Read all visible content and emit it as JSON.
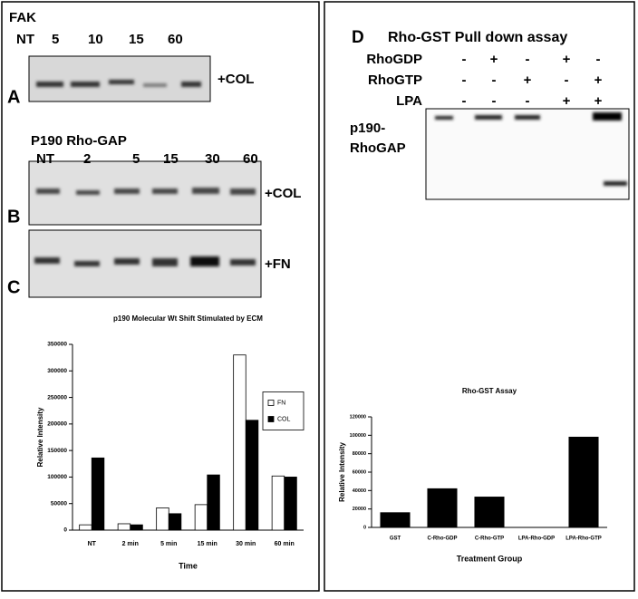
{
  "blots": {
    "fak_title": "FAK",
    "fak_lanes": [
      "NT",
      "5",
      "10",
      "15",
      "60"
    ],
    "fak_condition": "+COL",
    "label_a": "A",
    "p190_title": "P190 Rho-GAP",
    "p190_lanes": [
      "NT",
      "2",
      "5",
      "15",
      "30",
      "60"
    ],
    "col_condition": "+COL",
    "label_b": "B",
    "fn_condition": "+FN",
    "label_c": "C"
  },
  "pulldown": {
    "label": "D",
    "title": "Rho-GST Pull down assay",
    "rows": [
      {
        "name": "RhoGDP",
        "signs": [
          "-",
          "+",
          "-",
          "+",
          "-"
        ]
      },
      {
        "name": "RhoGTP",
        "signs": [
          "-",
          "-",
          "+",
          "-",
          "+"
        ]
      },
      {
        "name": "LPA",
        "signs": [
          "-",
          "-",
          "-",
          "+",
          "+"
        ]
      }
    ],
    "band_label": [
      "p190-",
      "RhoGAP"
    ]
  },
  "chart_data": [
    {
      "type": "bar",
      "title": "p190 Molecular Wt Shift Stimulated by ECM",
      "x_label": "Time",
      "y_label": "Relative Intensity",
      "categories": [
        "NT",
        "2 min",
        "5 min",
        "15 min",
        "30 min",
        "60 min"
      ],
      "series": [
        {
          "name": "FN",
          "color": "#ffffff",
          "values": [
            10000,
            12000,
            42000,
            48000,
            330000,
            102000
          ]
        },
        {
          "name": "COL",
          "color": "#000000",
          "values": [
            136000,
            10000,
            31000,
            104000,
            207000,
            100000
          ]
        }
      ],
      "ylim": [
        0,
        350000
      ],
      "yticks": [
        0,
        50000,
        100000,
        150000,
        200000,
        250000,
        300000,
        350000
      ],
      "legend": "right",
      "grid": false
    },
    {
      "type": "bar",
      "title": "Rho-GST Assay",
      "x_label": "Treatment Group",
      "y_label": "Relative Intensity",
      "categories": [
        "GST",
        "C-Rho-GDP",
        "C-Rho-GTP",
        "LPA-Rho-GDP",
        "LPA-Rho-GTP"
      ],
      "values": [
        16000,
        42000,
        33000,
        0,
        98000
      ],
      "color": "#000000",
      "ylim": [
        0,
        120000
      ],
      "yticks": [
        0,
        20000,
        40000,
        60000,
        80000,
        100000,
        120000
      ],
      "grid": false
    }
  ]
}
